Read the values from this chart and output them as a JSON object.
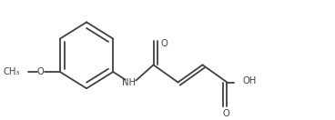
{
  "bg_color": "#ffffff",
  "line_color": "#404040",
  "line_width": 1.3,
  "text_color": "#404040",
  "font_size": 7.2,
  "figsize": [
    3.68,
    1.32
  ],
  "dpi": 100,
  "bx": 0.235,
  "by": 0.48,
  "br": 0.3,
  "methoxy_label": "O",
  "methoxy_ch3": "CH₃",
  "nh_label": "NH",
  "o_label": "O",
  "oh_label": "OH"
}
